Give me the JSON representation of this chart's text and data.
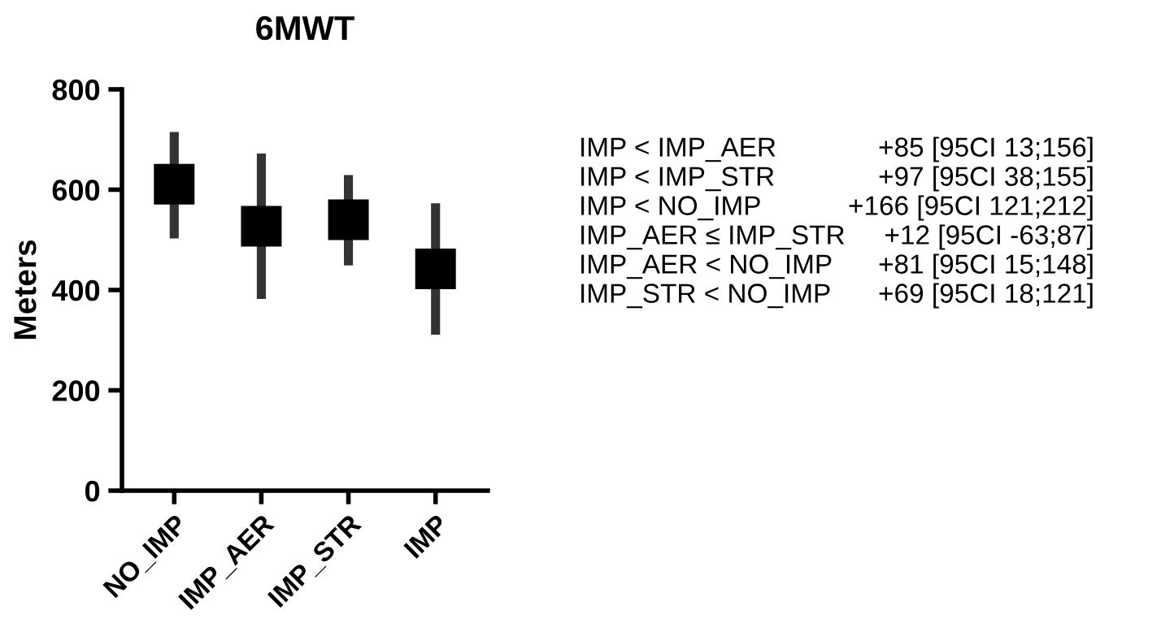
{
  "chart_data": {
    "type": "scatter",
    "title": "6MWT",
    "ylabel": "Meters",
    "categories": [
      "NO_IMP",
      "IMP_AER",
      "IMP_STR",
      "IMP"
    ],
    "series": [
      {
        "color": "#000000",
        "values": [
          611,
          527,
          540,
          442
        ],
        "errors": [
          [
            503,
            715
          ],
          [
            382,
            672
          ],
          [
            449,
            629
          ],
          [
            311,
            573
          ]
        ]
      }
    ],
    "ylim": [
      0,
      800
    ],
    "yticks": [
      0,
      200,
      400,
      600,
      800
    ],
    "grid": false,
    "marker": "square",
    "annotations": [
      "IMP < IMP_AER",
      "+85 [95CI 13;156]",
      "IMP < IMP_STR",
      "+97 [95CI 38;155]",
      "IMP < NO_IMP",
      "+166 [95CI 121;212]",
      "IMP_AER ≤ IMP_STR",
      "+12 [95CI -63;87]",
      "IMP_AER < NO_IMP",
      "+81 [95CI 15;148]",
      "IMP_STR < NO_IMP",
      "+69 [95CI 18;121]"
    ]
  }
}
